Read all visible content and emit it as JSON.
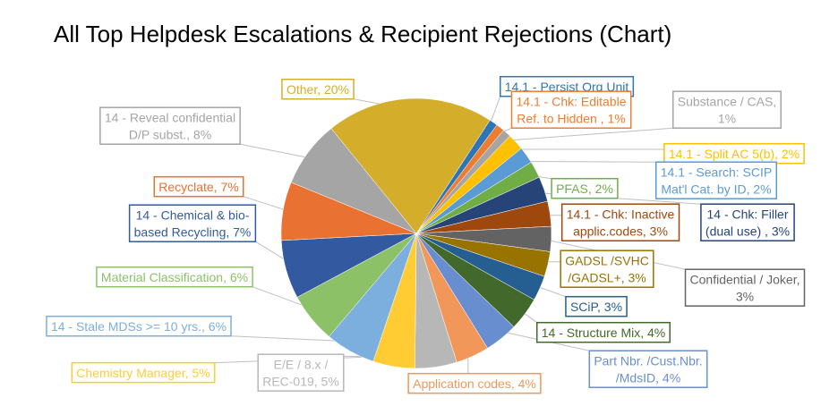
{
  "chart_data": {
    "type": "pie",
    "title": "All Top Helpdesk Escalations & Recipient Rejections (Chart)",
    "values": [
      1,
      1,
      1,
      2,
      2,
      2,
      3,
      3,
      3,
      3,
      3,
      4,
      4,
      4,
      5,
      5,
      6,
      6,
      7,
      7,
      8,
      20
    ],
    "value_labels": [
      "14.1 - Persist Org Unit",
      "14.1 - Chk: Editable Ref. to Hidden , 1%",
      "Substance / CAS, 1%",
      "14.1 - Split AC 5(b), 2%",
      "14.1 - Search: SCIP Mat'l Cat. by ID, 2%",
      "PFAS, 2%",
      "14 - Chk: Filler (dual use) , 3%",
      "14.1 - Chk: Inactive applic.codes, 3%",
      "Confidential / Joker, 3%",
      "GADSL /SVHC /GADSL+, 3%",
      "SCiP, 3%",
      "14 - Structure Mix, 4%",
      "Part Nbr. /Cust.Nbr. /MdsID, 4%",
      "Application codes, 4%",
      "E/E / 8.x / REC-019, 5%",
      "Chemistry Manager, 5%",
      "14 - Stale MDSs >= 10 yrs., 6%",
      "Material Classification, 6%",
      "14 - Chemical & bio-based Recycling, 7%",
      "Recyclate, 7%",
      "14 - Reveal confidential D/P subst., 8%",
      "Other, 20%"
    ],
    "colors": [
      "#2e75b6",
      "#ed7d31",
      "#a5a5a5",
      "#ffc000",
      "#5b9bd5",
      "#70ad47",
      "#264478",
      "#9e480e",
      "#636363",
      "#997300",
      "#255e91",
      "#43682b",
      "#698ed0",
      "#f1975a",
      "#b7b7b7",
      "#ffcd33",
      "#7cafdd",
      "#8cc168",
      "#335aa1",
      "#e97132",
      "#a5a5a5",
      "#d4ad2a"
    ]
  }
}
